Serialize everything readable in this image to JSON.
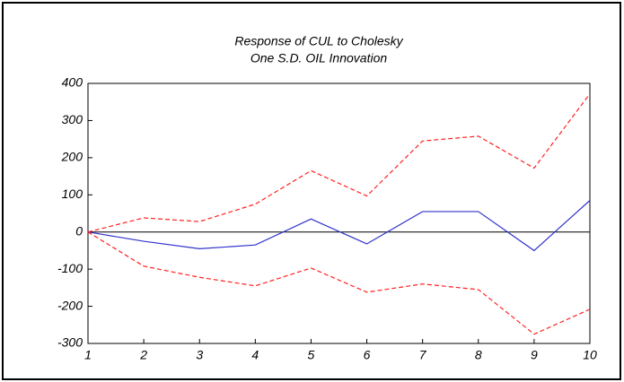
{
  "chart_data": {
    "type": "line",
    "title": [
      "Response of CUL to Cholesky",
      "One S.D. OIL Innovation"
    ],
    "categories": [
      "1",
      "2",
      "3",
      "4",
      "5",
      "6",
      "7",
      "8",
      "9",
      "10"
    ],
    "series": [
      {
        "color": "#3333cc",
        "dashed": false,
        "values": [
          0,
          -25,
          -45,
          -35,
          35,
          -32,
          55,
          55,
          -50,
          85
        ]
      },
      {
        "color": "#ff2020",
        "dashed": true,
        "values": [
          0,
          38,
          28,
          75,
          165,
          97,
          245,
          258,
          172,
          372
        ]
      },
      {
        "color": "#ff2020",
        "dashed": true,
        "values": [
          0,
          -92,
          -122,
          -145,
          -97,
          -162,
          -140,
          -155,
          -275,
          -208
        ]
      }
    ],
    "ylim": [
      -300,
      400
    ],
    "yticks": [
      -300,
      -200,
      -100,
      0,
      100,
      200,
      300,
      400
    ],
    "zero_line": true
  }
}
